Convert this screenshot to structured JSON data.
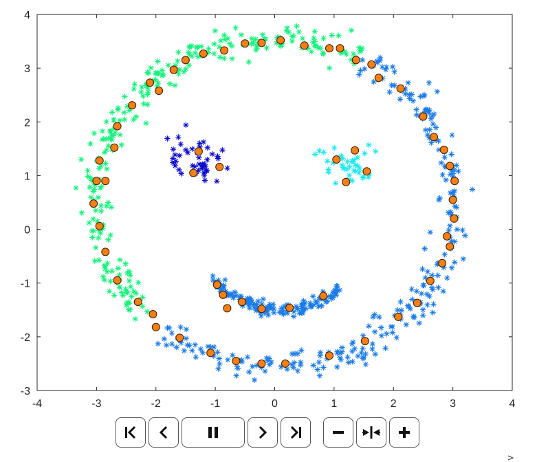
{
  "chart_data": {
    "type": "scatter",
    "title": "",
    "xlabel": "",
    "ylabel": "",
    "xlim": [
      -4,
      4
    ],
    "ylim": [
      -3,
      4
    ],
    "xticks": [
      -4,
      -3,
      -2,
      -1,
      0,
      1,
      2,
      3,
      4
    ],
    "yticks": [
      -3,
      -2,
      -1,
      0,
      1,
      2,
      3,
      4
    ],
    "grid": false,
    "legend": "none",
    "clusters": [
      {
        "marker": "asterisk",
        "color": "#16f27c",
        "shape": "ring-arc",
        "center": [
          0,
          0.5
        ],
        "radius": 3.05,
        "angle_range_deg": [
          62,
          225
        ],
        "spread": 0.09,
        "count": 260
      },
      {
        "marker": "asterisk",
        "color": "#1a7be8",
        "shape": "ring-arc",
        "center": [
          0,
          0.5
        ],
        "radius": 3.05,
        "angle_range_deg": [
          -128,
          62
        ],
        "spread": 0.09,
        "count": 260
      },
      {
        "marker": "asterisk",
        "color": "#1a7be8",
        "shape": "smile",
        "center": [
          0.1,
          -1.0
        ],
        "radius": 0.6,
        "x_range": [
          -1.05,
          1.1
        ],
        "spread": 0.07,
        "count": 150
      },
      {
        "marker": "asterisk",
        "color": "#0a0ad0",
        "shape": "blob",
        "center": [
          -1.25,
          1.3
        ],
        "spread": [
          0.28,
          0.2
        ],
        "count": 45
      },
      {
        "marker": "asterisk",
        "color": "#1ee8f0",
        "shape": "blob",
        "center": [
          1.25,
          1.2
        ],
        "spread": [
          0.25,
          0.2
        ],
        "count": 38
      }
    ],
    "centroids": {
      "marker": "circle",
      "color": "#f57f12",
      "edge_color": "#3a1a00",
      "points": [
        [
          -0.5,
          3.46
        ],
        [
          -0.22,
          3.47
        ],
        [
          0.1,
          3.52
        ],
        [
          0.5,
          3.42
        ],
        [
          0.92,
          3.37
        ],
        [
          1.1,
          3.37
        ],
        [
          -0.85,
          3.33
        ],
        [
          -1.2,
          3.27
        ],
        [
          -1.5,
          3.15
        ],
        [
          -1.7,
          2.97
        ],
        [
          -1.95,
          2.58
        ],
        [
          -2.1,
          2.73
        ],
        [
          -2.4,
          2.31
        ],
        [
          -2.65,
          1.92
        ],
        [
          -2.7,
          1.52
        ],
        [
          -2.95,
          1.28
        ],
        [
          -3.0,
          0.9
        ],
        [
          -2.85,
          0.9
        ],
        [
          -3.05,
          0.48
        ],
        [
          -2.95,
          0.06
        ],
        [
          -2.85,
          -0.42
        ],
        [
          -2.65,
          -0.95
        ],
        [
          -2.3,
          -1.35
        ],
        [
          -2.05,
          -1.58
        ],
        [
          -2.0,
          -1.82
        ],
        [
          -1.6,
          -2.02
        ],
        [
          -1.08,
          -2.3
        ],
        [
          1.37,
          3.15
        ],
        [
          1.63,
          3.07
        ],
        [
          1.75,
          2.82
        ],
        [
          2.12,
          2.62
        ],
        [
          2.5,
          2.1
        ],
        [
          2.68,
          1.72
        ],
        [
          2.85,
          1.48
        ],
        [
          2.95,
          1.18
        ],
        [
          3.03,
          0.9
        ],
        [
          3.0,
          0.55
        ],
        [
          3.02,
          0.2
        ],
        [
          2.9,
          -0.13
        ],
        [
          2.95,
          -0.32
        ],
        [
          2.82,
          -0.63
        ],
        [
          2.62,
          -0.96
        ],
        [
          2.4,
          -1.37
        ],
        [
          2.08,
          -1.63
        ],
        [
          1.52,
          -2.08
        ],
        [
          0.92,
          -2.35
        ],
        [
          0.18,
          -2.5
        ],
        [
          -0.22,
          -2.5
        ],
        [
          -0.65,
          -2.45
        ],
        [
          -0.97,
          -1.03
        ],
        [
          -0.87,
          -1.22
        ],
        [
          -0.8,
          -1.47
        ],
        [
          -0.55,
          -1.35
        ],
        [
          -0.22,
          -1.48
        ],
        [
          0.25,
          -1.46
        ],
        [
          0.82,
          -1.24
        ],
        [
          -1.28,
          1.45
        ],
        [
          -1.37,
          1.05
        ],
        [
          -0.93,
          1.16
        ],
        [
          1.04,
          1.3
        ],
        [
          1.35,
          1.47
        ],
        [
          1.2,
          0.88
        ],
        [
          1.55,
          1.08
        ]
      ]
    }
  },
  "controls": {
    "buttons": [
      {
        "name": "first-frame-button",
        "icon": "skip-to-start-icon"
      },
      {
        "name": "previous-frame-button",
        "icon": "chevron-left-icon"
      },
      {
        "name": "pause-button",
        "icon": "pause-icon"
      },
      {
        "name": "next-frame-button",
        "icon": "chevron-right-icon"
      },
      {
        "name": "last-frame-button",
        "icon": "skip-to-end-icon"
      },
      {
        "name": "slower-button",
        "icon": "minus-icon"
      },
      {
        "name": "reset-speed-button",
        "icon": "collapse-arrows-icon"
      },
      {
        "name": "faster-button",
        "icon": "plus-icon"
      }
    ]
  }
}
